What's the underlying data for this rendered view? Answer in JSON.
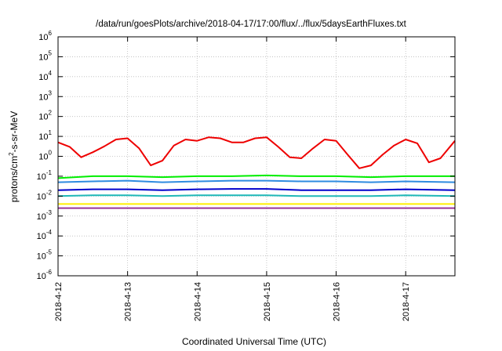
{
  "chart_data": {
    "type": "line",
    "title": "/data/run/goesPlots/archive/2018-04-17/17:00/flux/../flux/5daysEarthFluxes.txt",
    "xlabel": "Coordinated Universal Time (UTC)",
    "ylabel": "protons/cm²-s-sr-MeV",
    "ylabel_parts": {
      "base": "protons/cm",
      "sup": "2",
      "rest": "-s-sr-MeV"
    },
    "yscale": "log",
    "ylim": [
      1e-06,
      1000000.0
    ],
    "xlim": [
      "2018-04-12 00:00",
      "2018-04-17 17:00"
    ],
    "grid": true,
    "x_ticks": [
      "2018-4-12",
      "2018-4-13",
      "2018-4-14",
      "2018-4-15",
      "2018-4-16",
      "2018-4-17"
    ],
    "y_ticks": [
      {
        "base": "10",
        "exp": "-6"
      },
      {
        "base": "10",
        "exp": "-5"
      },
      {
        "base": "10",
        "exp": "-4"
      },
      {
        "base": "10",
        "exp": "-3"
      },
      {
        "base": "10",
        "exp": "-2"
      },
      {
        "base": "10",
        "exp": "-1"
      },
      {
        "base": "10",
        "exp": "0"
      },
      {
        "base": "10",
        "exp": "1"
      },
      {
        "base": "10",
        "exp": "2"
      },
      {
        "base": "10",
        "exp": "3"
      },
      {
        "base": "10",
        "exp": "4"
      },
      {
        "base": "10",
        "exp": "5"
      },
      {
        "base": "10",
        "exp": "6"
      }
    ],
    "series": [
      {
        "color": "#ee0000",
        "x": [
          "2018-04-12 00:00",
          "2018-04-12 04:00",
          "2018-04-12 08:00",
          "2018-04-12 12:00",
          "2018-04-12 16:00",
          "2018-04-12 20:00",
          "2018-04-13 00:00",
          "2018-04-13 04:00",
          "2018-04-13 08:00",
          "2018-04-13 12:00",
          "2018-04-13 16:00",
          "2018-04-13 20:00",
          "2018-04-14 00:00",
          "2018-04-14 04:00",
          "2018-04-14 08:00",
          "2018-04-14 12:00",
          "2018-04-14 16:00",
          "2018-04-14 20:00",
          "2018-04-15 00:00",
          "2018-04-15 04:00",
          "2018-04-15 08:00",
          "2018-04-15 12:00",
          "2018-04-15 16:00",
          "2018-04-15 20:00",
          "2018-04-16 00:00",
          "2018-04-16 04:00",
          "2018-04-16 08:00",
          "2018-04-16 12:00",
          "2018-04-16 16:00",
          "2018-04-16 20:00",
          "2018-04-17 00:00",
          "2018-04-17 04:00",
          "2018-04-17 08:00",
          "2018-04-17 12:00",
          "2018-04-17 17:00"
        ],
        "values": [
          5.0,
          3.0,
          0.9,
          1.6,
          3.2,
          7.0,
          8.0,
          2.5,
          0.35,
          0.6,
          3.5,
          7.0,
          6.0,
          9.0,
          8.0,
          5.0,
          5.0,
          8.0,
          9.0,
          3.0,
          0.9,
          0.8,
          2.5,
          7.0,
          6.0,
          1.2,
          0.25,
          0.35,
          1.2,
          3.5,
          7.0,
          4.5,
          0.5,
          0.8,
          6.0
        ]
      },
      {
        "color": "#00ee00",
        "x": [
          "2018-04-12 00:00",
          "2018-04-12 12:00",
          "2018-04-13 00:00",
          "2018-04-13 12:00",
          "2018-04-14 00:00",
          "2018-04-14 12:00",
          "2018-04-15 00:00",
          "2018-04-15 12:00",
          "2018-04-16 00:00",
          "2018-04-16 12:00",
          "2018-04-17 00:00",
          "2018-04-17 17:00"
        ],
        "values": [
          0.08,
          0.1,
          0.1,
          0.09,
          0.1,
          0.1,
          0.11,
          0.1,
          0.1,
          0.09,
          0.1,
          0.1
        ]
      },
      {
        "color": "#2e8be0",
        "x": [
          "2018-04-12 00:00",
          "2018-04-12 12:00",
          "2018-04-13 00:00",
          "2018-04-13 12:00",
          "2018-04-14 00:00",
          "2018-04-14 12:00",
          "2018-04-15 00:00",
          "2018-04-15 12:00",
          "2018-04-16 00:00",
          "2018-04-16 12:00",
          "2018-04-17 00:00",
          "2018-04-17 17:00"
        ],
        "values": [
          0.05,
          0.055,
          0.06,
          0.05,
          0.055,
          0.06,
          0.06,
          0.055,
          0.055,
          0.05,
          0.055,
          0.05
        ]
      },
      {
        "color": "#0000cc",
        "x": [
          "2018-04-12 00:00",
          "2018-04-12 12:00",
          "2018-04-13 00:00",
          "2018-04-13 12:00",
          "2018-04-14 00:00",
          "2018-04-14 12:00",
          "2018-04-15 00:00",
          "2018-04-15 12:00",
          "2018-04-16 00:00",
          "2018-04-16 12:00",
          "2018-04-17 00:00",
          "2018-04-17 17:00"
        ],
        "values": [
          0.02,
          0.022,
          0.022,
          0.02,
          0.022,
          0.023,
          0.023,
          0.02,
          0.02,
          0.02,
          0.022,
          0.02
        ]
      },
      {
        "color": "#1fb8b8",
        "x": [
          "2018-04-12 00:00",
          "2018-04-12 12:00",
          "2018-04-13 00:00",
          "2018-04-13 12:00",
          "2018-04-14 00:00",
          "2018-04-14 12:00",
          "2018-04-15 00:00",
          "2018-04-15 12:00",
          "2018-04-16 00:00",
          "2018-04-16 12:00",
          "2018-04-17 00:00",
          "2018-04-17 17:00"
        ],
        "values": [
          0.01,
          0.011,
          0.011,
          0.01,
          0.011,
          0.011,
          0.011,
          0.01,
          0.01,
          0.01,
          0.011,
          0.01
        ]
      },
      {
        "color": "#ffee00",
        "x": [
          "2018-04-12 00:00",
          "2018-04-12 12:00",
          "2018-04-13 00:00",
          "2018-04-13 12:00",
          "2018-04-14 00:00",
          "2018-04-14 12:00",
          "2018-04-15 00:00",
          "2018-04-15 12:00",
          "2018-04-16 00:00",
          "2018-04-16 12:00",
          "2018-04-17 00:00",
          "2018-04-17 17:00"
        ],
        "values": [
          0.004,
          0.004,
          0.004,
          0.004,
          0.004,
          0.004,
          0.004,
          0.004,
          0.004,
          0.004,
          0.004,
          0.004
        ]
      },
      {
        "color": "#993399",
        "x": [
          "2018-04-12 00:00",
          "2018-04-12 12:00",
          "2018-04-13 00:00",
          "2018-04-13 12:00",
          "2018-04-14 00:00",
          "2018-04-14 12:00",
          "2018-04-15 00:00",
          "2018-04-15 12:00",
          "2018-04-16 00:00",
          "2018-04-16 12:00",
          "2018-04-17 00:00",
          "2018-04-17 17:00"
        ],
        "values": [
          0.0025,
          0.0025,
          0.0025,
          0.0025,
          0.0025,
          0.0025,
          0.0025,
          0.0025,
          0.0025,
          0.0025,
          0.0025,
          0.0025
        ]
      }
    ]
  }
}
